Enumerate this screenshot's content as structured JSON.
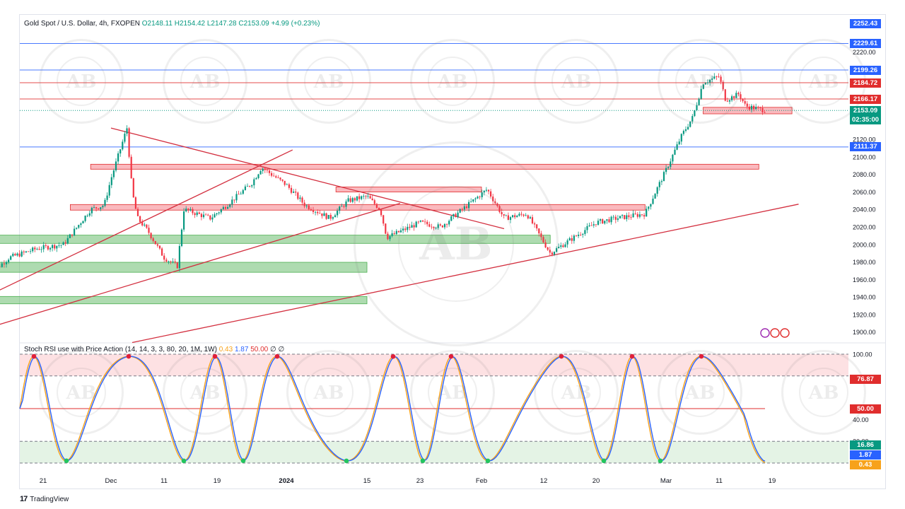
{
  "header": {
    "symbol": "Gold Spot / U.S. Dollar, 4h, FXOPEN",
    "open": "O2148.11",
    "high": "H2154.42",
    "low": "L2147.28",
    "close": "C2153.09",
    "change": "+4.99 (+0.23%)"
  },
  "indicator": {
    "name": "Stoch RSI use with Price Action (14, 14, 3, 3, 80, 20, 1M, 1W)",
    "k_value": "0.43",
    "d_value": "1.87",
    "level_value": "50.00",
    "extra": "∅ ∅"
  },
  "price_axis": {
    "ticks": [
      "1900.00",
      "1920.00",
      "1940.00",
      "1960.00",
      "1980.00",
      "2000.00",
      "2020.00",
      "2040.00",
      "2060.00",
      "2080.00",
      "2100.00",
      "2120.00",
      "2220.00"
    ],
    "tags": [
      {
        "label": "2252.43",
        "color": "#2962ff",
        "value": 2252.43
      },
      {
        "label": "2229.61",
        "color": "#2962ff",
        "value": 2229.61
      },
      {
        "label": "2199.26",
        "color": "#2962ff",
        "value": 2199.26
      },
      {
        "label": "2184.72",
        "color": "#e02d2d",
        "value": 2184.72
      },
      {
        "label": "2166.17",
        "color": "#e02d2d",
        "value": 2166.17
      },
      {
        "label": "2111.37",
        "color": "#2962ff",
        "value": 2111.37
      }
    ],
    "last_price": "2153.09",
    "countdown": "02:35:00",
    "last_color": "#089981"
  },
  "osc_axis": {
    "ticks": [
      "100.00",
      "40.00",
      "20.00"
    ],
    "tags": [
      {
        "label": "76.87",
        "color": "#e02d2d",
        "value": 76.87
      },
      {
        "label": "50.00",
        "color": "#e02d2d",
        "value": 50
      },
      {
        "label": "16.86",
        "color": "#089981",
        "value": 16.86
      },
      {
        "label": "1.87",
        "color": "#2962ff",
        "value": 1.87
      },
      {
        "label": "0.43",
        "color": "#f7a21b",
        "value": 0.43
      }
    ]
  },
  "time_axis": [
    "21",
    "Dec",
    "11",
    "19",
    "2024",
    "15",
    "23",
    "Feb",
    "12",
    "20",
    "Mar",
    "11",
    "19"
  ],
  "branding": {
    "tradingview": "TradingView",
    "watermark": "AB"
  },
  "chart_data": {
    "type": "candlestick",
    "title": "Gold Spot / U.S. Dollar, 4h, FXOPEN",
    "ylim": [
      1890,
      2255
    ],
    "horizontal_levels": [
      2229.61,
      2199.26,
      2184.72,
      2166.17,
      2111.37
    ],
    "zones": [
      {
        "kind": "resistance",
        "from": "Nov 28",
        "to": "Mar 17",
        "low": 2087,
        "high": 2090
      },
      {
        "kind": "resistance",
        "from": "Jan 10",
        "to": "Feb 1",
        "low": 2061,
        "high": 2064
      },
      {
        "kind": "resistance",
        "from": "Nov 25",
        "to": "Feb 27",
        "low": 2040,
        "high": 2044
      },
      {
        "kind": "resistance",
        "from": "Mar 8",
        "to": "Mar 22",
        "low": 2150,
        "high": 2155
      },
      {
        "kind": "support",
        "from": "Nov 13",
        "to": "Feb 13",
        "low": 2002,
        "high": 2009
      },
      {
        "kind": "support",
        "from": "Nov 13",
        "to": "Jan 15",
        "low": 1969,
        "high": 1978
      },
      {
        "kind": "support",
        "from": "Nov 13",
        "to": "Jan 15",
        "low": 1933,
        "high": 1939
      }
    ],
    "trendlines": [
      {
        "from": [
          "Dec 1",
          2133
        ],
        "to": [
          "Feb 5",
          2018
        ]
      },
      {
        "from": [
          "Nov 13",
          1942
        ],
        "to": [
          "Jan 3",
          2108
        ]
      },
      {
        "from": [
          "Nov 13",
          1905
        ],
        "to": [
          "Jan 20",
          2047
        ]
      },
      {
        "from": [
          "Dec 5",
          1888
        ],
        "to": [
          "Mar 23",
          2046
        ]
      }
    ],
    "price_path": [
      [
        "Nov 13",
        1965
      ],
      [
        "Nov 16",
        1985
      ],
      [
        "Nov 20",
        1995
      ],
      [
        "Nov 24",
        2000
      ],
      [
        "Nov 28",
        2040
      ],
      [
        "Nov 30",
        2045
      ],
      [
        "Dec 1",
        2075
      ],
      [
        "Dec 4",
        2133
      ],
      [
        "Dec 5",
        2060
      ],
      [
        "Dec 6",
        2030
      ],
      [
        "Dec 8",
        2015
      ],
      [
        "Dec 11",
        1985
      ],
      [
        "Dec 13",
        1975
      ],
      [
        "Dec 14",
        2040
      ],
      [
        "Dec 18",
        2030
      ],
      [
        "Dec 21",
        2045
      ],
      [
        "Dec 26",
        2070
      ],
      [
        "Dec 28",
        2088
      ],
      [
        "Jan 2",
        2068
      ],
      [
        "Jan 5",
        2045
      ],
      [
        "Jan 9",
        2030
      ],
      [
        "Jan 12",
        2050
      ],
      [
        "Jan 15",
        2055
      ],
      [
        "Jan 17",
        2040
      ],
      [
        "Jan 18",
        2008
      ],
      [
        "Jan 23",
        2025
      ],
      [
        "Jan 26",
        2020
      ],
      [
        "Jan 30",
        2045
      ],
      [
        "Feb 2",
        2063
      ],
      [
        "Feb 5",
        2030
      ],
      [
        "Feb 9",
        2035
      ],
      [
        "Feb 13",
        1990
      ],
      [
        "Feb 16",
        2005
      ],
      [
        "Feb 20",
        2025
      ],
      [
        "Feb 23",
        2030
      ],
      [
        "Feb 27",
        2035
      ],
      [
        "Mar 1",
        2085
      ],
      [
        "Mar 4",
        2125
      ],
      [
        "Mar 6",
        2145
      ],
      [
        "Mar 8",
        2185
      ],
      [
        "Mar 11",
        2192
      ],
      [
        "Mar 12",
        2165
      ],
      [
        "Mar 14",
        2172
      ],
      [
        "Mar 15",
        2158
      ],
      [
        "Mar 18",
        2153.09
      ]
    ],
    "oscillator": {
      "name": "Stoch RSI use with Price Action (14, 14, 3, 3, 80, 20, 1M, 1W)",
      "ylim": [
        0,
        100
      ],
      "levels": [
        100,
        80,
        50,
        20,
        0
      ],
      "last": {
        "k": 0.43,
        "d": 1.87
      }
    }
  }
}
